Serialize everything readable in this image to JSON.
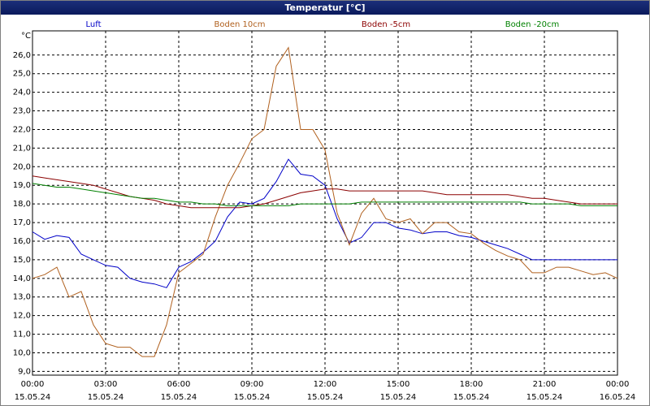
{
  "chart_data": {
    "type": "line",
    "title": "Temperatur [°C]",
    "y_unit": "°C",
    "x": [
      0,
      0.5,
      1,
      1.5,
      2,
      2.5,
      3,
      3.5,
      4,
      4.5,
      5,
      5.5,
      6,
      6.5,
      7,
      7.5,
      8,
      8.5,
      9,
      9.5,
      10,
      10.5,
      11,
      11.5,
      12,
      12.5,
      13,
      13.5,
      14,
      14.5,
      15,
      15.5,
      16,
      16.5,
      17,
      17.5,
      18,
      18.5,
      19,
      19.5,
      20,
      20.5,
      21,
      21.5,
      22,
      22.5,
      23,
      23.5,
      24
    ],
    "series": [
      {
        "name": "Luft",
        "color": "#0000c8",
        "values": [
          16.5,
          16.1,
          16.3,
          16.2,
          15.3,
          15.0,
          14.7,
          14.6,
          14.0,
          13.8,
          13.7,
          13.5,
          14.6,
          14.9,
          15.4,
          16.0,
          17.3,
          18.1,
          18.0,
          18.3,
          19.2,
          20.4,
          19.6,
          19.5,
          19.0,
          17.2,
          15.9,
          16.2,
          17.0,
          17.0,
          16.7,
          16.6,
          16.4,
          16.5,
          16.5,
          16.3,
          16.2,
          16.0,
          15.8,
          15.6,
          15.3,
          15.0,
          15.0,
          15.0,
          15.0,
          15.0,
          15.0,
          15.0,
          15.0
        ]
      },
      {
        "name": "Boden 10cm",
        "color": "#b0601e",
        "values": [
          14.0,
          14.2,
          14.6,
          13.0,
          13.3,
          11.5,
          10.5,
          10.3,
          10.3,
          9.8,
          9.8,
          11.5,
          14.3,
          14.8,
          15.3,
          17.3,
          19.0,
          20.2,
          21.5,
          22.0,
          25.4,
          26.4,
          22.0,
          22.0,
          20.9,
          17.5,
          15.8,
          17.5,
          18.3,
          17.2,
          17.0,
          17.2,
          16.4,
          17.0,
          17.0,
          16.5,
          16.4,
          15.9,
          15.5,
          15.2,
          15.0,
          14.3,
          14.3,
          14.6,
          14.6,
          14.4,
          14.2,
          14.3,
          14.0
        ]
      },
      {
        "name": "Boden -5cm",
        "color": "#8b0000",
        "values": [
          19.5,
          19.4,
          19.3,
          19.2,
          19.1,
          19.0,
          18.8,
          18.6,
          18.4,
          18.3,
          18.2,
          18.0,
          17.9,
          17.8,
          17.8,
          17.8,
          17.8,
          17.8,
          17.9,
          18.0,
          18.2,
          18.4,
          18.6,
          18.7,
          18.8,
          18.8,
          18.7,
          18.7,
          18.7,
          18.7,
          18.7,
          18.7,
          18.7,
          18.6,
          18.5,
          18.5,
          18.5,
          18.5,
          18.5,
          18.5,
          18.4,
          18.3,
          18.3,
          18.2,
          18.1,
          18.0,
          18.0,
          18.0,
          18.0
        ]
      },
      {
        "name": "Boden -20cm",
        "color": "#008000",
        "values": [
          19.1,
          19.0,
          18.9,
          18.9,
          18.8,
          18.7,
          18.6,
          18.5,
          18.4,
          18.3,
          18.3,
          18.2,
          18.1,
          18.1,
          18.0,
          18.0,
          17.9,
          17.9,
          17.9,
          17.9,
          17.9,
          17.9,
          18.0,
          18.0,
          18.0,
          18.0,
          18.0,
          18.1,
          18.1,
          18.1,
          18.1,
          18.1,
          18.1,
          18.1,
          18.1,
          18.1,
          18.1,
          18.1,
          18.1,
          18.1,
          18.1,
          18.0,
          18.0,
          18.0,
          18.0,
          17.9,
          17.9,
          17.9,
          17.9
        ]
      }
    ],
    "xlim": [
      0,
      24
    ],
    "xticks": [
      {
        "value": 0,
        "label": "00:00"
      },
      {
        "value": 3,
        "label": "03:00"
      },
      {
        "value": 6,
        "label": "06:00"
      },
      {
        "value": 9,
        "label": "09:00"
      },
      {
        "value": 12,
        "label": "12:00"
      },
      {
        "value": 15,
        "label": "15:00"
      },
      {
        "value": 18,
        "label": "18:00"
      },
      {
        "value": 21,
        "label": "21:00"
      },
      {
        "value": 24,
        "label": "00:00"
      }
    ],
    "xtick_dates": [
      "15.05.24",
      "15.05.24",
      "15.05.24",
      "15.05.24",
      "15.05.24",
      "15.05.24",
      "15.05.24",
      "15.05.24",
      "16.05.24"
    ],
    "ylim": [
      8.8,
      27.3
    ],
    "yticks": [
      {
        "value": 9,
        "label": "9,0"
      },
      {
        "value": 10,
        "label": "10,0"
      },
      {
        "value": 11,
        "label": "11,0"
      },
      {
        "value": 12,
        "label": "12,0"
      },
      {
        "value": 13,
        "label": "13,0"
      },
      {
        "value": 14,
        "label": "14,0"
      },
      {
        "value": 15,
        "label": "15,0"
      },
      {
        "value": 16,
        "label": "16,0"
      },
      {
        "value": 17,
        "label": "17,0"
      },
      {
        "value": 18,
        "label": "18,0"
      },
      {
        "value": 19,
        "label": "19,0"
      },
      {
        "value": 20,
        "label": "20,0"
      },
      {
        "value": 21,
        "label": "21,0"
      },
      {
        "value": 22,
        "label": "22,0"
      },
      {
        "value": 23,
        "label": "23,0"
      },
      {
        "value": 24,
        "label": "24,0"
      },
      {
        "value": 25,
        "label": "25,0"
      },
      {
        "value": 26,
        "label": "26,0"
      }
    ],
    "grid": true
  }
}
